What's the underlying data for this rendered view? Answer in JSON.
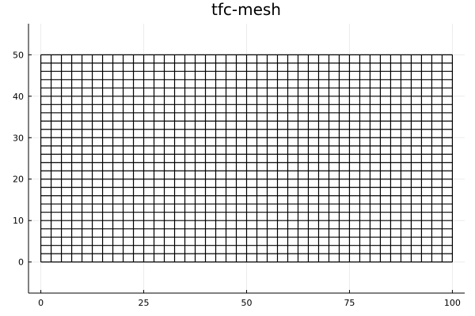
{
  "chart_data": {
    "type": "line",
    "title": "tfc-mesh",
    "xlabel": "",
    "ylabel": "",
    "xlim": [
      -3,
      103
    ],
    "ylim": [
      -7.5,
      57.5
    ],
    "x_ticks": [
      0,
      25,
      50,
      75,
      100
    ],
    "y_ticks": [
      0,
      10,
      20,
      30,
      40,
      50
    ],
    "grid": true,
    "legend": "none",
    "mesh": {
      "x_range": [
        0,
        100
      ],
      "y_range": [
        0,
        50
      ],
      "nx": 40,
      "ny": 25
    },
    "colors": {
      "mesh": "#000000",
      "background": "#ffffff"
    }
  }
}
